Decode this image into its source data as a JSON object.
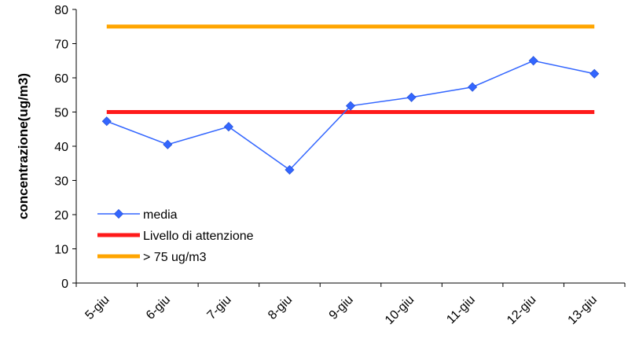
{
  "chart_data": {
    "type": "line",
    "categories": [
      "5-giu",
      "6-giu",
      "7-giu",
      "8-giu",
      "9-giu",
      "10-giu",
      "11-giu",
      "12-giu",
      "13-giu"
    ],
    "series": [
      {
        "name": "media",
        "values": [
          47.3,
          40.5,
          45.7,
          33.1,
          51.8,
          54.3,
          57.3,
          65.0,
          61.2
        ],
        "color": "#3366ff",
        "marker": "diamond"
      },
      {
        "name": "Livello di attenzione",
        "values": [
          50,
          50,
          50,
          50,
          50,
          50,
          50,
          50,
          50
        ],
        "color": "#ff1a1a",
        "marker": "none"
      },
      {
        "name": "> 75 ug/m3",
        "values": [
          75,
          75,
          75,
          75,
          75,
          75,
          75,
          75,
          75
        ],
        "color": "#ffa500",
        "marker": "none"
      }
    ],
    "title": "",
    "xlabel": "",
    "ylabel": "concentrazione(ug/m3)",
    "ylim": [
      0,
      80
    ],
    "yticks": [
      "0",
      "10",
      "20",
      "30",
      "40",
      "50",
      "60",
      "70",
      "80"
    ],
    "grid": false,
    "legend_position": "bottom-left inside plot"
  }
}
